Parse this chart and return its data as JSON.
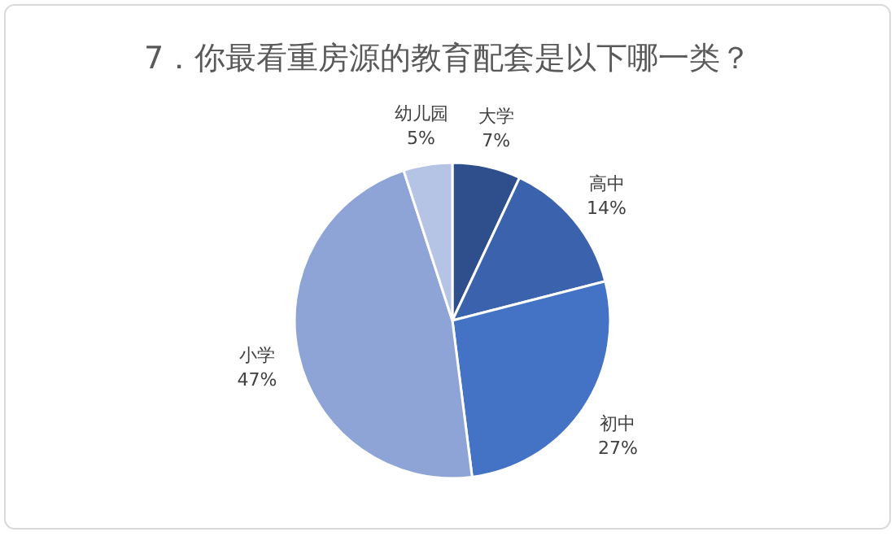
{
  "chart_data": {
    "type": "pie",
    "title": "7．你最看重房源的教育配套是以下哪一类？",
    "categories": [
      "大学",
      "高中",
      "初中",
      "小学",
      "幼儿园"
    ],
    "values": [
      7,
      14,
      27,
      47,
      5
    ],
    "colors": [
      "#2f4f8c",
      "#3a62ad",
      "#4472c4",
      "#8fa4d6",
      "#b5c3e5"
    ],
    "value_labels": [
      "7%",
      "14%",
      "27%",
      "47%",
      "5%"
    ],
    "legend": false
  }
}
